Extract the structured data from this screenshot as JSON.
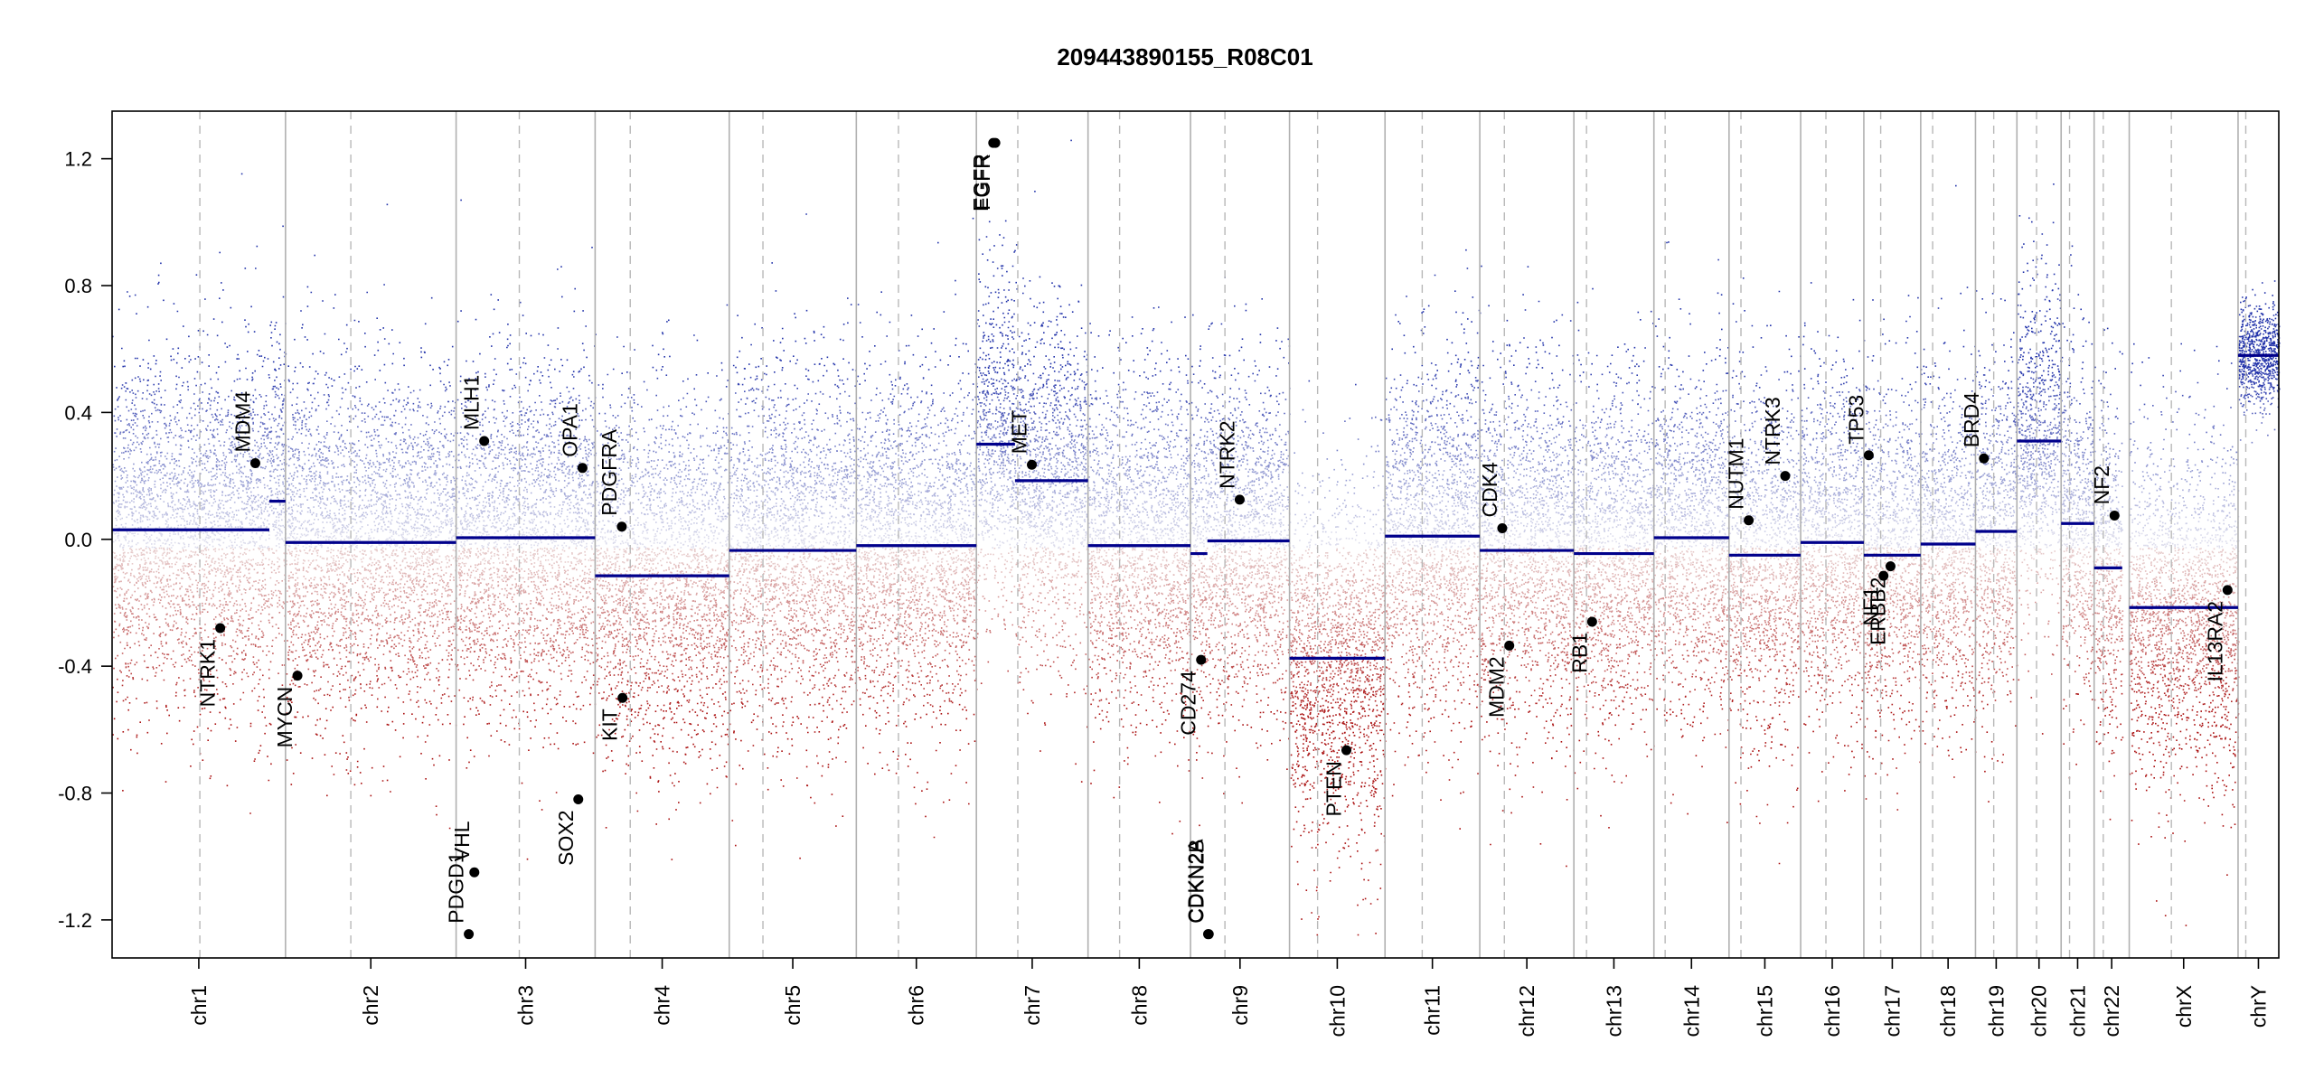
{
  "chart_data": {
    "type": "scatter",
    "title": "209443890155_R08C01",
    "xlabel": "",
    "ylabel": "",
    "ylim": [
      -1.32,
      1.35
    ],
    "yticks": [
      -1.2,
      -0.8,
      -0.4,
      0.0,
      0.4,
      0.8,
      1.2
    ],
    "ytick_labels": [
      "-1.2",
      "-0.8",
      "-0.4",
      "0.0",
      "0.4",
      "0.8",
      "1.2"
    ],
    "grid": false,
    "legend": "none",
    "colors": {
      "gain": "#2233aa",
      "loss": "#aa1111",
      "segment": "#00008b",
      "chrom_boundary": "#b0b0b0",
      "centromere": "#b8b8b8",
      "gene_point": "#000000"
    },
    "chromosomes": [
      {
        "name": "chr1",
        "start": 0.0,
        "end": 247.0,
        "centromere": 125.0
      },
      {
        "name": "chr2",
        "start": 247.0,
        "end": 490.0,
        "centromere": 340.0
      },
      {
        "name": "chr3",
        "start": 490.0,
        "end": 688.0,
        "centromere": 580.0
      },
      {
        "name": "chr4",
        "start": 688.0,
        "end": 879.0,
        "centromere": 738.0
      },
      {
        "name": "chr5",
        "start": 879.0,
        "end": 1060.0,
        "centromere": 927.0
      },
      {
        "name": "chr6",
        "start": 1060.0,
        "end": 1231.0,
        "centromere": 1120.0
      },
      {
        "name": "chr7",
        "start": 1231.0,
        "end": 1390.0,
        "centromere": 1290.0
      },
      {
        "name": "chr8",
        "start": 1390.0,
        "end": 1536.0,
        "centromere": 1435.0
      },
      {
        "name": "chr9",
        "start": 1536.0,
        "end": 1677.0,
        "centromere": 1585.0
      },
      {
        "name": "chr10",
        "start": 1677.0,
        "end": 1813.0,
        "centromere": 1717.0
      },
      {
        "name": "chr11",
        "start": 1813.0,
        "end": 1948.0,
        "centromere": 1866.0
      },
      {
        "name": "chr12",
        "start": 1948.0,
        "end": 2082.0,
        "centromere": 1983.0
      },
      {
        "name": "chr13",
        "start": 2082.0,
        "end": 2196.0,
        "centromere": 2100.0
      },
      {
        "name": "chr14",
        "start": 2196.0,
        "end": 2303.0,
        "centromere": 2212.0
      },
      {
        "name": "chr15",
        "start": 2303.0,
        "end": 2405.0,
        "centromere": 2320.0
      },
      {
        "name": "chr16",
        "start": 2405.0,
        "end": 2495.0,
        "centromere": 2441.0
      },
      {
        "name": "chr17",
        "start": 2495.0,
        "end": 2576.0,
        "centromere": 2519.0
      },
      {
        "name": "chr18",
        "start": 2576.0,
        "end": 2654.0,
        "centromere": 2593.0
      },
      {
        "name": "chr19",
        "start": 2654.0,
        "end": 2713.0,
        "centromere": 2680.0
      },
      {
        "name": "chr20",
        "start": 2713.0,
        "end": 2776.0,
        "centromere": 2741.0
      },
      {
        "name": "chr21",
        "start": 2776.0,
        "end": 2823.0,
        "centromere": 2788.0
      },
      {
        "name": "chr22",
        "start": 2823.0,
        "end": 2873.0,
        "centromere": 2836.0
      },
      {
        "name": "chrX",
        "start": 2873.0,
        "end": 3028.0,
        "centromere": 2933.0
      },
      {
        "name": "chrY",
        "start": 3028.0,
        "end": 3086.0,
        "centromere": 3039.0
      }
    ],
    "segments": [
      {
        "chrom": "chr1",
        "x0": 0.0,
        "x1": 224.0,
        "value": 0.03
      },
      {
        "chrom": "chr1",
        "x0": 224.0,
        "x1": 247.0,
        "value": 0.12
      },
      {
        "chrom": "chr2",
        "x0": 247.0,
        "x1": 490.0,
        "value": -0.01
      },
      {
        "chrom": "chr3",
        "x0": 490.0,
        "x1": 688.0,
        "value": 0.005
      },
      {
        "chrom": "chr4",
        "x0": 688.0,
        "x1": 879.0,
        "value": -0.115
      },
      {
        "chrom": "chr5",
        "x0": 879.0,
        "x1": 1060.0,
        "value": -0.035
      },
      {
        "chrom": "chr6",
        "x0": 1060.0,
        "x1": 1231.0,
        "value": -0.02
      },
      {
        "chrom": "chr7",
        "x0": 1231.0,
        "x1": 1286.0,
        "value": 0.3
      },
      {
        "chrom": "chr7",
        "x0": 1286.0,
        "x1": 1390.0,
        "value": 0.185
      },
      {
        "chrom": "chr8",
        "x0": 1390.0,
        "x1": 1536.0,
        "value": -0.02
      },
      {
        "chrom": "chr9",
        "x0": 1536.0,
        "x1": 1560.0,
        "value": -0.045
      },
      {
        "chrom": "chr9",
        "x0": 1560.0,
        "x1": 1677.0,
        "value": -0.005
      },
      {
        "chrom": "chr10",
        "x0": 1677.0,
        "x1": 1813.0,
        "value": -0.375
      },
      {
        "chrom": "chr11",
        "x0": 1813.0,
        "x1": 1948.0,
        "value": 0.01
      },
      {
        "chrom": "chr12",
        "x0": 1948.0,
        "x1": 2082.0,
        "value": -0.035
      },
      {
        "chrom": "chr13",
        "x0": 2082.0,
        "x1": 2196.0,
        "value": -0.045
      },
      {
        "chrom": "chr14",
        "x0": 2196.0,
        "x1": 2303.0,
        "value": 0.005
      },
      {
        "chrom": "chr15",
        "x0": 2303.0,
        "x1": 2405.0,
        "value": -0.05
      },
      {
        "chrom": "chr16",
        "x0": 2405.0,
        "x1": 2495.0,
        "value": -0.01
      },
      {
        "chrom": "chr17",
        "x0": 2495.0,
        "x1": 2576.0,
        "value": -0.05
      },
      {
        "chrom": "chr18",
        "x0": 2576.0,
        "x1": 2654.0,
        "value": -0.015
      },
      {
        "chrom": "chr19",
        "x0": 2654.0,
        "x1": 2713.0,
        "value": 0.025
      },
      {
        "chrom": "chr20",
        "x0": 2713.0,
        "x1": 2776.0,
        "value": 0.31
      },
      {
        "chrom": "chr21",
        "x0": 2776.0,
        "x1": 2823.0,
        "value": 0.05
      },
      {
        "chrom": "chr22",
        "x0": 2823.0,
        "x1": 2863.0,
        "value": -0.09
      },
      {
        "chrom": "chrX",
        "x0": 2873.0,
        "x1": 3028.0,
        "value": -0.215
      },
      {
        "chrom": "chrY",
        "x0": 3028.0,
        "x1": 3086.0,
        "value": 0.58
      }
    ],
    "genes": [
      {
        "name": "NTRK1",
        "x": 154.0,
        "value": -0.28,
        "label_side": "below"
      },
      {
        "name": "MDM4",
        "x": 204.0,
        "value": 0.24,
        "label_side": "above"
      },
      {
        "name": "MYCN",
        "x": 264.0,
        "value": -0.43,
        "label_side": "below"
      },
      {
        "name": "PDGD1",
        "x": 508.0,
        "value": -1.245,
        "label_side": "above"
      },
      {
        "name": "VHL",
        "x": 516.0,
        "value": -1.05,
        "label_side": "above"
      },
      {
        "name": "MLH1",
        "x": 530.0,
        "value": 0.31,
        "label_side": "above"
      },
      {
        "name": "SOX2",
        "x": 664.0,
        "value": -0.82,
        "label_side": "below"
      },
      {
        "name": "OPA1",
        "x": 670.0,
        "value": 0.225,
        "label_side": "above"
      },
      {
        "name": "PDGFRA",
        "x": 726.0,
        "value": 0.04,
        "label_side": "above"
      },
      {
        "name": "KIT",
        "x": 727.0,
        "value": -0.5,
        "label_side": "below"
      },
      {
        "name": "EGFR",
        "x": 1255.0,
        "value": 1.25,
        "label_side": "below"
      },
      {
        "name": "FGFR",
        "x": 1258.0,
        "value": 1.25,
        "label_side": "below"
      },
      {
        "name": "MET",
        "x": 1310.0,
        "value": 0.235,
        "label_side": "above"
      },
      {
        "name": "CD274",
        "x": 1551.0,
        "value": -0.38,
        "label_side": "below"
      },
      {
        "name": "CDKN2A",
        "x": 1561.0,
        "value": -1.245,
        "label_side": "above"
      },
      {
        "name": "CDKN2B",
        "x": 1562.0,
        "value": -1.245,
        "label_side": "above"
      },
      {
        "name": "NTRK2",
        "x": 1606.0,
        "value": 0.125,
        "label_side": "above"
      },
      {
        "name": "PTEN",
        "x": 1758.0,
        "value": -0.665,
        "label_side": "below"
      },
      {
        "name": "CDK4",
        "x": 1980.0,
        "value": 0.035,
        "label_side": "above"
      },
      {
        "name": "MDM2",
        "x": 1990.0,
        "value": -0.335,
        "label_side": "below"
      },
      {
        "name": "RB1",
        "x": 2108.0,
        "value": -0.26,
        "label_side": "below"
      },
      {
        "name": "NUTM1",
        "x": 2331.0,
        "value": 0.06,
        "label_side": "above"
      },
      {
        "name": "NTRK3",
        "x": 2383.0,
        "value": 0.2,
        "label_side": "above"
      },
      {
        "name": "TP53",
        "x": 2502.0,
        "value": 0.265,
        "label_side": "above"
      },
      {
        "name": "NF1",
        "x": 2523.0,
        "value": -0.115,
        "label_side": "below"
      },
      {
        "name": "ERBB2",
        "x": 2533.0,
        "value": -0.085,
        "label_side": "below"
      },
      {
        "name": "BRD4",
        "x": 2666.0,
        "value": 0.255,
        "label_side": "above"
      },
      {
        "name": "NF2",
        "x": 2852.0,
        "value": 0.075,
        "label_side": "above"
      },
      {
        "name": "IL13RA2",
        "x": 3013.0,
        "value": -0.16,
        "label_side": "below"
      }
    ]
  }
}
